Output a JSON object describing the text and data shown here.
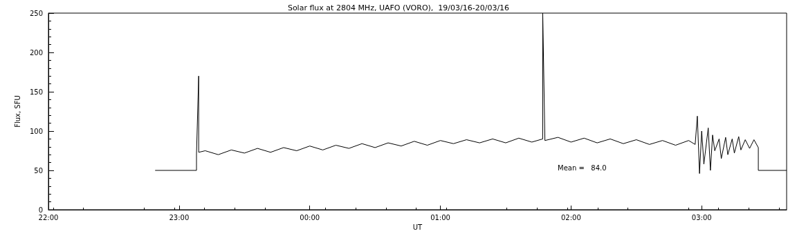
{
  "chart_data": {
    "type": "line",
    "title": "Solar flux at 2804 MHz, UAFO (VORO),  19/03/16-20/03/16",
    "xlabel": "UT",
    "ylabel": "Flux, SFU",
    "annotations": [
      "Mean =   84.0"
    ],
    "xlim": [
      "--03-19T22:00",
      "--03-20T03:39"
    ],
    "xticks": [
      {
        "value": "--03-19T22:00",
        "label": "22:00"
      },
      {
        "value": "--03-19T23:00",
        "label": "23:00"
      },
      {
        "value": "--03-20T00:00",
        "label": "00:00"
      },
      {
        "value": "--03-20T01:00",
        "label": "01:00"
      },
      {
        "value": "--03-20T02:00",
        "label": "02:00"
      },
      {
        "value": "--03-20T03:00",
        "label": "03:00"
      }
    ],
    "ylim": [
      0,
      250
    ],
    "yticks": [
      0,
      50,
      100,
      150,
      200,
      250
    ],
    "grid": false,
    "marker": "none",
    "line_style": "solid",
    "series": [
      {
        "color": "#000000",
        "x": [
          "--03-19T22:49",
          "--03-19T23:08",
          "--03-19T23:08",
          "--03-19T23:09",
          "--03-19T23:09",
          "--03-19T23:12",
          "--03-19T23:18",
          "--03-19T23:24",
          "--03-19T23:30",
          "--03-19T23:36",
          "--03-19T23:42",
          "--03-19T23:48",
          "--03-19T23:54",
          "--03-20T00:00",
          "--03-20T00:06",
          "--03-20T00:12",
          "--03-20T00:18",
          "--03-20T00:24",
          "--03-20T00:30",
          "--03-20T00:36",
          "--03-20T00:42",
          "--03-20T00:48",
          "--03-20T00:54",
          "--03-20T01:00",
          "--03-20T01:06",
          "--03-20T01:12",
          "--03-20T01:18",
          "--03-20T01:24",
          "--03-20T01:30",
          "--03-20T01:36",
          "--03-20T01:42",
          "--03-20T01:47",
          "--03-20T01:47",
          "--03-20T01:48",
          "--03-20T01:54",
          "--03-20T02:00",
          "--03-20T02:06",
          "--03-20T02:12",
          "--03-20T02:18",
          "--03-20T02:24",
          "--03-20T02:30",
          "--03-20T02:36",
          "--03-20T02:42",
          "--03-20T02:48",
          "--03-20T02:54",
          "--03-20T02:57",
          "--03-20T02:58",
          "--03-20T02:59",
          "--03-20T03:00",
          "--03-20T03:01",
          "--03-20T03:03",
          "--03-20T03:04",
          "--03-20T03:05",
          "--03-20T03:06",
          "--03-20T03:08",
          "--03-20T03:09",
          "--03-20T03:11",
          "--03-20T03:12",
          "--03-20T03:14",
          "--03-20T03:15",
          "--03-20T03:17",
          "--03-20T03:18",
          "--03-20T03:20",
          "--03-20T03:22",
          "--03-20T03:24",
          "--03-20T03:26",
          "--03-20T03:26",
          "--03-20T03:39"
        ],
        "values": [
          50,
          50,
          71,
          170,
          73,
          75,
          70,
          76,
          72,
          78,
          73,
          79,
          75,
          81,
          76,
          82,
          78,
          84,
          79,
          85,
          81,
          87,
          82,
          88,
          84,
          89,
          85,
          90,
          85,
          91,
          86,
          90,
          250,
          88,
          92,
          86,
          91,
          85,
          90,
          84,
          89,
          83,
          88,
          82,
          88,
          83,
          119,
          46,
          100,
          58,
          104,
          50,
          95,
          75,
          90,
          65,
          92,
          70,
          90,
          72,
          93,
          76,
          89,
          78,
          89,
          79,
          50,
          50
        ]
      }
    ]
  }
}
